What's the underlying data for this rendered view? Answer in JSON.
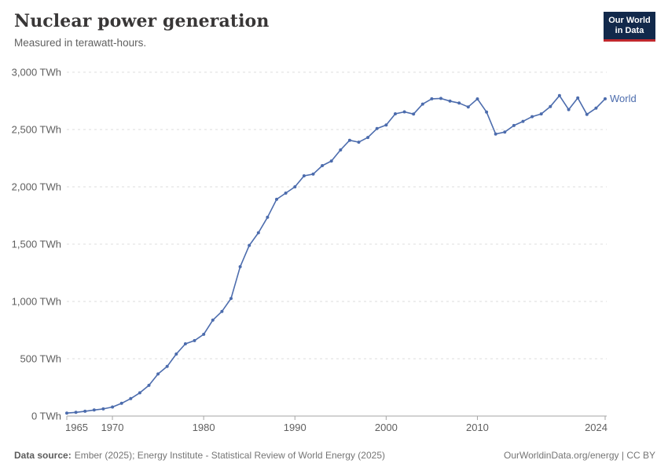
{
  "header": {
    "title": "Nuclear power generation",
    "subtitle": "Measured in terawatt-hours."
  },
  "logo": {
    "line1": "Our World",
    "line2": "in Data",
    "bg_color": "#12294b",
    "accent_color": "#c0282d"
  },
  "footer": {
    "source_label": "Data source:",
    "source_text": "Ember (2025); Energy Institute - Statistical Review of World Energy (2025)",
    "credit": "OurWorldinData.org/energy | CC BY"
  },
  "chart_data": {
    "type": "line",
    "title": "Nuclear power generation",
    "unit": "TWh",
    "xlabel": "",
    "ylabel": "",
    "xlim": [
      1965,
      2024
    ],
    "ylim": [
      0,
      3000
    ],
    "grid": "dashed-horizontal",
    "legend_position": "end-of-line",
    "x_ticks": [
      {
        "value": 1965,
        "label": "1965"
      },
      {
        "value": 1970,
        "label": "1970"
      },
      {
        "value": 1980,
        "label": "1980"
      },
      {
        "value": 1990,
        "label": "1990"
      },
      {
        "value": 2000,
        "label": "2000"
      },
      {
        "value": 2010,
        "label": "2010"
      },
      {
        "value": 2024,
        "label": "2024"
      }
    ],
    "y_ticks": [
      {
        "value": 0,
        "label": "0 TWh"
      },
      {
        "value": 500,
        "label": "500 TWh"
      },
      {
        "value": 1000,
        "label": "1,000 TWh"
      },
      {
        "value": 1500,
        "label": "1,500 TWh"
      },
      {
        "value": 2000,
        "label": "2,000 TWh"
      },
      {
        "value": 2500,
        "label": "2,500 TWh"
      },
      {
        "value": 3000,
        "label": "3,000 TWh"
      }
    ],
    "x": [
      1965,
      1966,
      1967,
      1968,
      1969,
      1970,
      1971,
      1972,
      1973,
      1974,
      1975,
      1976,
      1977,
      1978,
      1979,
      1980,
      1981,
      1982,
      1983,
      1984,
      1985,
      1986,
      1987,
      1988,
      1989,
      1990,
      1991,
      1992,
      1993,
      1994,
      1995,
      1996,
      1997,
      1998,
      1999,
      2000,
      2001,
      2002,
      2003,
      2004,
      2005,
      2006,
      2007,
      2008,
      2009,
      2010,
      2011,
      2012,
      2013,
      2014,
      2015,
      2016,
      2017,
      2018,
      2019,
      2020,
      2021,
      2022,
      2023,
      2024
    ],
    "series": [
      {
        "name": "World",
        "color": "#4C6CAD",
        "values": [
          26,
          32,
          42,
          53,
          62,
          79,
          111,
          152,
          203,
          268,
          367,
          433,
          541,
          630,
          658,
          713,
          837,
          913,
          1026,
          1303,
          1489,
          1599,
          1734,
          1891,
          1945,
          2000,
          2096,
          2111,
          2185,
          2225,
          2322,
          2406,
          2390,
          2431,
          2508,
          2540,
          2637,
          2654,
          2635,
          2722,
          2768,
          2771,
          2748,
          2731,
          2697,
          2767,
          2653,
          2461,
          2478,
          2535,
          2571,
          2612,
          2636,
          2701,
          2796,
          2674,
          2775,
          2632,
          2686,
          2768
        ]
      }
    ]
  }
}
